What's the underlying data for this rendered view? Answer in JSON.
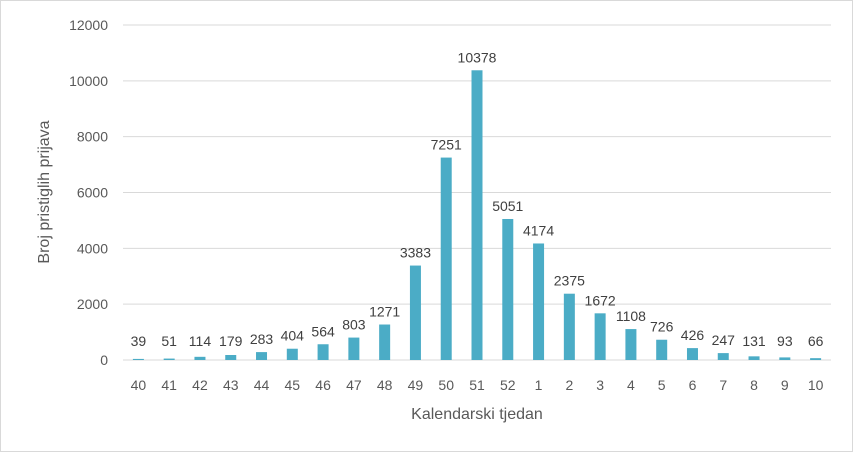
{
  "chart_data": {
    "type": "bar",
    "xlabel": "Kalendarski tjedan",
    "ylabel": "Broj pristiglih prijava",
    "ylim": [
      0,
      12000
    ],
    "yticks": [
      "0",
      "2000",
      "4000",
      "6000",
      "8000",
      "10000",
      "12000"
    ],
    "grid": true,
    "bar_color": "#4bacc6",
    "categories": [
      "40",
      "41",
      "42",
      "43",
      "44",
      "45",
      "46",
      "47",
      "48",
      "49",
      "50",
      "51",
      "52",
      "1",
      "2",
      "3",
      "4",
      "5",
      "6",
      "7",
      "8",
      "9",
      "10"
    ],
    "values": [
      39,
      51,
      114,
      179,
      283,
      404,
      564,
      803,
      1271,
      3383,
      7251,
      10378,
      5051,
      4174,
      2375,
      1672,
      1108,
      726,
      426,
      247,
      131,
      93,
      66
    ],
    "labels": [
      "39",
      "51",
      "114",
      "179",
      "283",
      "404",
      "564",
      "803",
      "1271",
      "3383",
      "7251",
      "10378",
      "5051",
      "4174",
      "2375",
      "1672",
      "1108",
      "726",
      "426",
      "247",
      "131",
      "93",
      "66"
    ]
  }
}
